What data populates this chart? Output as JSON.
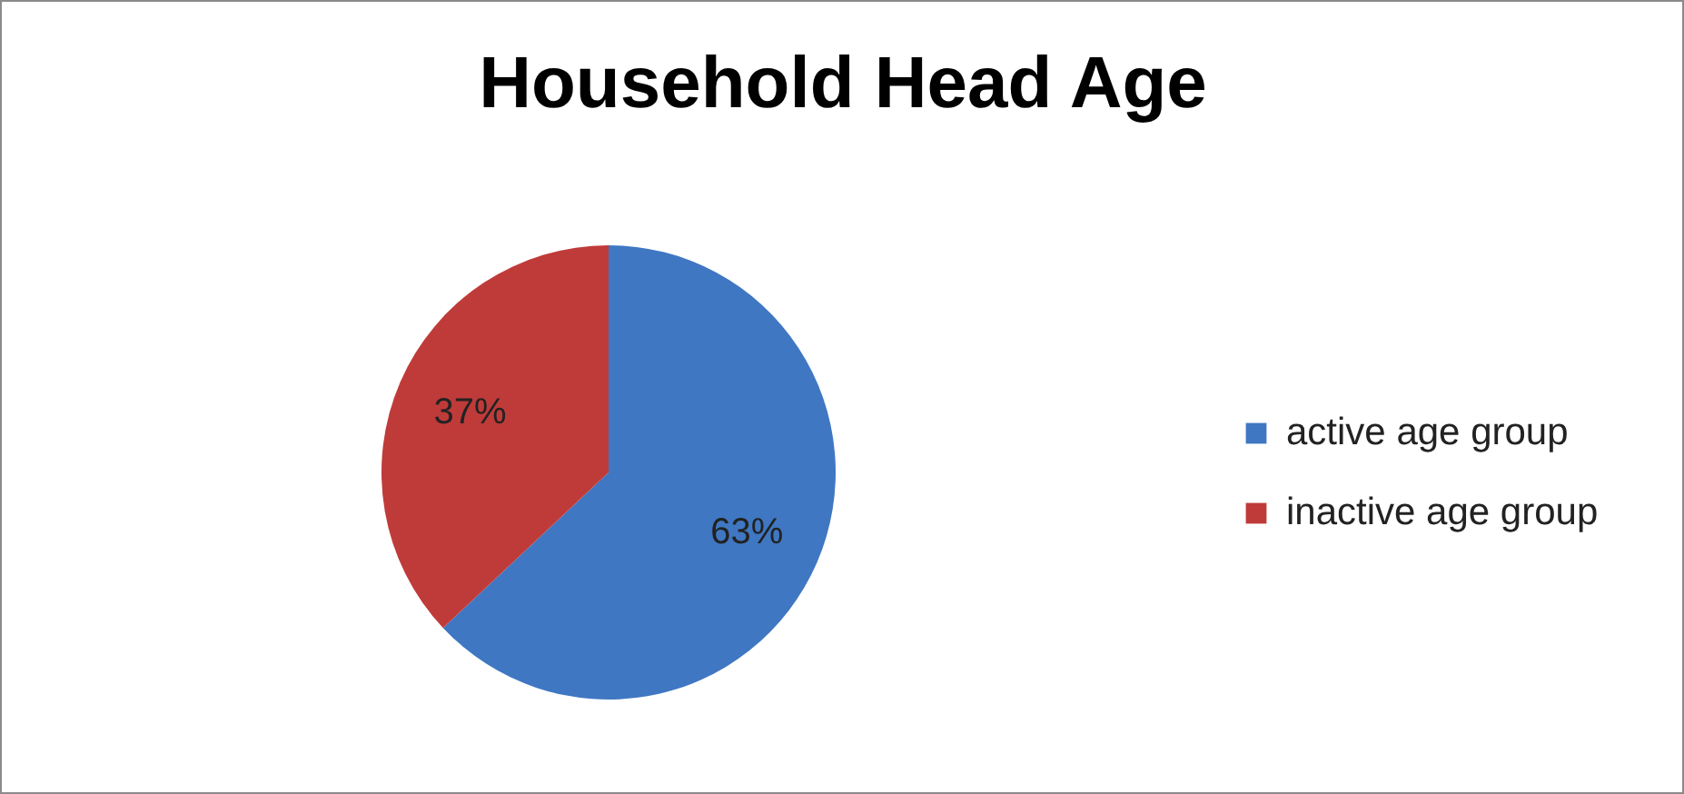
{
  "chart_data": {
    "type": "pie",
    "title": "Household Head Age",
    "categories": [
      "active age group",
      "inactive age group"
    ],
    "values": [
      63,
      37
    ],
    "colors": [
      "#3f77c2",
      "#bf3b39"
    ],
    "value_labels": [
      "63%",
      "37%"
    ],
    "legend": "right"
  }
}
